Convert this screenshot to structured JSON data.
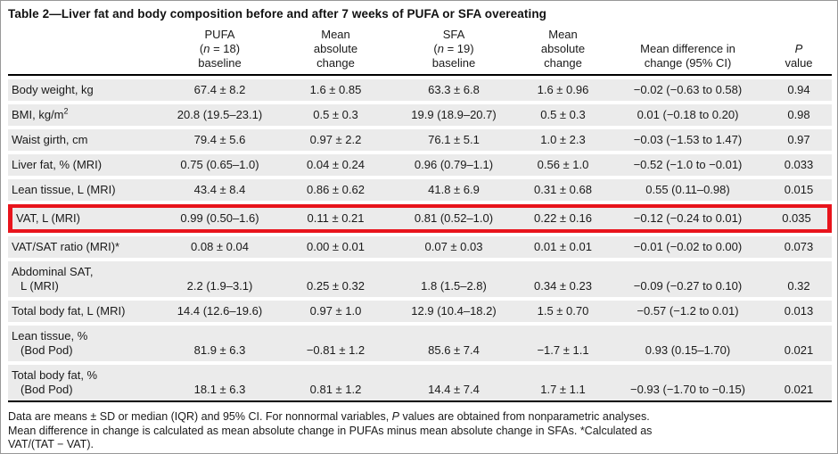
{
  "title": "Table 2—Liver fat and body composition before and after 7 weeks of PUFA or SFA overeating",
  "colors": {
    "highlight_red": "#e8141c",
    "row_band_gray": "#ebebeb",
    "rule_black": "#000000",
    "figure_border_gray": "#989898"
  },
  "columns": [
    {
      "id": "row_label",
      "header_lines_html": []
    },
    {
      "id": "pufa_baseline",
      "header_lines_html": [
        "PUFA",
        "(<i>n</i> = 18)",
        "baseline"
      ]
    },
    {
      "id": "pufa_mean_absolute_change",
      "header_lines_html": [
        "Mean",
        "absolute",
        "change"
      ]
    },
    {
      "id": "sfa_baseline",
      "header_lines_html": [
        "SFA",
        "(<i>n</i> = 19)",
        "baseline"
      ]
    },
    {
      "id": "sfa_mean_absolute_change",
      "header_lines_html": [
        "Mean",
        "absolute",
        "change"
      ]
    },
    {
      "id": "mean_difference_in_change",
      "header_lines_html": [
        "Mean difference in",
        "change (95% CI)"
      ]
    },
    {
      "id": "p_value",
      "header_lines_html": [
        "<i>P</i>",
        "value"
      ]
    }
  ],
  "rows": [
    {
      "label_lines_html": [
        "Body weight, kg"
      ],
      "highlighted": false,
      "values": [
        "67.4 ± 8.2",
        "1.6 ± 0.85",
        "63.3 ± 6.8",
        "1.6 ± 0.96",
        "−0.02 (−0.63 to 0.58)",
        "0.94"
      ]
    },
    {
      "label_lines_html": [
        "BMI, kg/m<sup>2</sup>"
      ],
      "highlighted": false,
      "values": [
        "20.8 (19.5–23.1)",
        "0.5 ± 0.3",
        "19.9 (18.9–20.7)",
        "0.5 ± 0.3",
        "0.01 (−0.18 to 0.20)",
        "0.98"
      ]
    },
    {
      "label_lines_html": [
        "Waist girth, cm"
      ],
      "highlighted": false,
      "values": [
        "79.4 ± 5.6",
        "0.97 ± 2.2",
        "76.1 ± 5.1",
        "1.0 ± 2.3",
        "−0.03 (−1.53 to 1.47)",
        "0.97"
      ]
    },
    {
      "label_lines_html": [
        "Liver fat, % (MRI)"
      ],
      "highlighted": false,
      "values": [
        "0.75 (0.65–1.0)",
        "0.04 ± 0.24",
        "0.96 (0.79–1.1)",
        "0.56 ± 1.0",
        "−0.52 (−1.0 to −0.01)",
        "0.033"
      ]
    },
    {
      "label_lines_html": [
        "Lean tissue, L (MRI)"
      ],
      "highlighted": false,
      "values": [
        "43.4 ± 8.4",
        "0.86 ± 0.62",
        "41.8 ± 6.9",
        "0.31 ± 0.68",
        "0.55 (0.11–0.98)",
        "0.015"
      ]
    },
    {
      "label_lines_html": [
        "VAT, L (MRI)"
      ],
      "highlighted": true,
      "values": [
        "0.99 (0.50–1.6)",
        "0.11 ± 0.21",
        "0.81 (0.52–1.0)",
        "0.22 ± 0.16",
        "−0.12 (−0.24 to 0.01)",
        "0.035"
      ]
    },
    {
      "label_lines_html": [
        "VAT/SAT ratio (MRI)*"
      ],
      "highlighted": false,
      "values": [
        "0.08 ± 0.04",
        "0.00 ± 0.01",
        "0.07 ± 0.03",
        "0.01 ± 0.01",
        "−0.01 (−0.02 to 0.00)",
        "0.073"
      ]
    },
    {
      "label_lines_html": [
        "Abdominal SAT,",
        "L (MRI)"
      ],
      "highlighted": false,
      "values": [
        "2.2 (1.9–3.1)",
        "0.25 ± 0.32",
        "1.8 (1.5–2.8)",
        "0.34 ± 0.23",
        "−0.09 (−0.27 to 0.10)",
        "0.32"
      ]
    },
    {
      "label_lines_html": [
        "Total body fat, L (MRI)"
      ],
      "highlighted": false,
      "values": [
        "14.4 (12.6–19.6)",
        "0.97 ± 1.0",
        "12.9 (10.4–18.2)",
        "1.5 ± 0.70",
        "−0.57 (−1.2 to 0.01)",
        "0.013"
      ]
    },
    {
      "label_lines_html": [
        "Lean tissue, %",
        "(Bod Pod)"
      ],
      "highlighted": false,
      "values": [
        "81.9 ± 6.3",
        "−0.81 ± 1.2",
        "85.6 ± 7.4",
        "−1.7 ± 1.1",
        "0.93 (0.15–1.70)",
        "0.021"
      ]
    },
    {
      "label_lines_html": [
        "Total body fat, %",
        "(Bod Pod)"
      ],
      "highlighted": false,
      "values": [
        "18.1 ± 6.3",
        "0.81 ± 1.2",
        "14.4 ± 7.4",
        "1.7 ± 1.1",
        "−0.93 (−1.70 to −0.15)",
        "0.021"
      ]
    }
  ],
  "footnote_lines_html": [
    "Data are means ± SD or median (IQR) and 95% CI. For nonnormal variables, <i>P</i> values are obtained from nonparametric analyses.",
    "Mean difference in change is calculated as mean absolute change in PUFAs minus mean absolute change in SFAs. *Calculated as",
    "VAT/(TAT − VAT)."
  ]
}
